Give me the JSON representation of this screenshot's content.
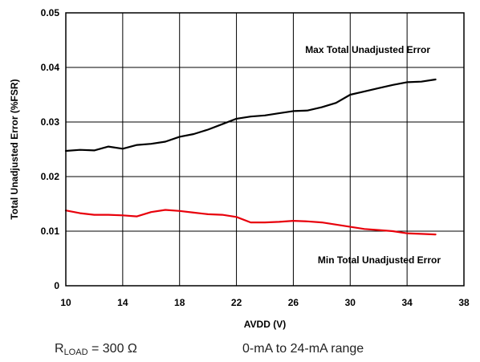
{
  "chart_data": {
    "type": "line",
    "xlabel": "AVDD (V)",
    "ylabel": "Total Unadjusted Error (%FSR)",
    "xlim": [
      10,
      38
    ],
    "ylim": [
      0,
      0.05
    ],
    "x_ticks": [
      "10",
      "14",
      "18",
      "22",
      "26",
      "30",
      "34",
      "38"
    ],
    "y_ticks": [
      "0",
      "0.01",
      "0.02",
      "0.03",
      "0.04",
      "0.05"
    ],
    "grid": true,
    "series": [
      {
        "name": "Max Total Unadjusted Error",
        "color": "#000000",
        "x": [
          10,
          11,
          12,
          13,
          14,
          15,
          16,
          17,
          18,
          19,
          20,
          21,
          22,
          23,
          24,
          25,
          26,
          27,
          28,
          29,
          30,
          31,
          32,
          33,
          34,
          35,
          36
        ],
        "y": [
          0.0247,
          0.0249,
          0.0248,
          0.0255,
          0.0251,
          0.0258,
          0.026,
          0.0264,
          0.0273,
          0.0278,
          0.0286,
          0.0296,
          0.0306,
          0.031,
          0.0312,
          0.0316,
          0.032,
          0.0321,
          0.0327,
          0.0335,
          0.035,
          0.0356,
          0.0362,
          0.0368,
          0.0373,
          0.0374,
          0.0378
        ]
      },
      {
        "name": "Min Total Unadjusted Error",
        "color": "#e8000b",
        "x": [
          10,
          11,
          12,
          13,
          14,
          15,
          16,
          17,
          18,
          19,
          20,
          21,
          22,
          23,
          24,
          25,
          26,
          27,
          28,
          29,
          30,
          31,
          32,
          33,
          34,
          35,
          36
        ],
        "y": [
          0.0138,
          0.0133,
          0.013,
          0.013,
          0.0129,
          0.0127,
          0.0135,
          0.0139,
          0.0137,
          0.0134,
          0.0131,
          0.013,
          0.0126,
          0.0116,
          0.0116,
          0.0117,
          0.0119,
          0.0118,
          0.0116,
          0.0112,
          0.0108,
          0.0104,
          0.0102,
          0.01,
          0.0096,
          0.0095,
          0.0094
        ]
      }
    ]
  },
  "footer": {
    "rload_main": "R",
    "rload_sub": "LOAD",
    "rload_value": " = 300 Ω",
    "range_text": "0-mA to 24-mA range"
  }
}
